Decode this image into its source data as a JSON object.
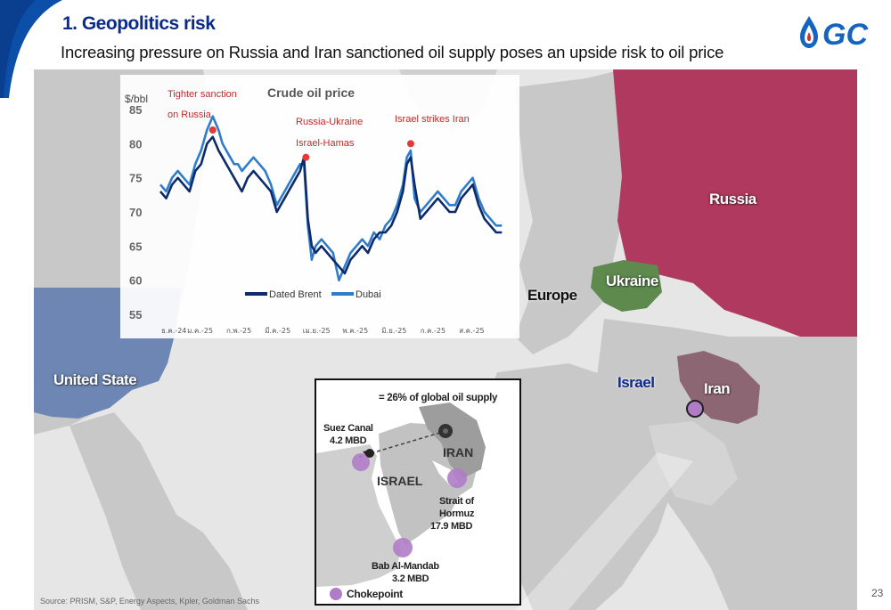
{
  "header": {
    "title": "1. Geopolitics risk",
    "subtitle": "Increasing pressure on Russia and Iran sanctioned oil supply poses an upside risk to oil price"
  },
  "logo": {
    "text": "GC",
    "icon": "drop-logo-icon",
    "color": "#1565c0"
  },
  "map": {
    "labels": {
      "russia": "Russia",
      "ukraine": "Ukraine",
      "europe": "Europe",
      "united_states": "United State",
      "israel": "Israel",
      "iran": "Iran"
    },
    "colors": {
      "russia": "#b03a5f",
      "ukraine": "#5e8a4e",
      "united_states": "#6d86b3",
      "iran": "#8c6673",
      "land": "#c8c8c8",
      "ocean": "#e6e6e6"
    }
  },
  "chart_data": {
    "type": "line",
    "title": "Crude oil price",
    "ylabel": "$/bbl",
    "xlabel": "",
    "ylim": [
      55,
      85
    ],
    "yticks": [
      55,
      60,
      65,
      70,
      75,
      80,
      85
    ],
    "x_tick_labels": [
      "ธ.ค.-24",
      "ม.ค.-25",
      "ก.พ.-25",
      "มี.ค.-25",
      "เม.ย.-25",
      "พ.ค.-25",
      "มิ.ย.-25",
      "ก.ค.-25",
      "ส.ค.-25"
    ],
    "x_range": [
      0,
      9
    ],
    "series": [
      {
        "name": "Dated Brent",
        "color": "#0d2a6b",
        "x": [
          0,
          0.15,
          0.3,
          0.45,
          0.6,
          0.75,
          0.9,
          1.05,
          1.2,
          1.35,
          1.5,
          1.6,
          1.7,
          1.8,
          1.9,
          2.0,
          2.1,
          2.25,
          2.4,
          2.55,
          2.7,
          2.85,
          3.0,
          3.1,
          3.2,
          3.3,
          3.4,
          3.5,
          3.6,
          3.7,
          3.8,
          3.9,
          4.0,
          4.15,
          4.3,
          4.45,
          4.6,
          4.75,
          4.9,
          5.05,
          5.2,
          5.35,
          5.5,
          5.65,
          5.8,
          5.95,
          6.1,
          6.25,
          6.35,
          6.45,
          6.55,
          6.7,
          6.85,
          7.0,
          7.15,
          7.3,
          7.45,
          7.6,
          7.75,
          7.9,
          8.05,
          8.2,
          8.35,
          8.5,
          8.65,
          8.8
        ],
        "values": [
          73,
          72,
          74,
          75,
          74,
          73,
          76,
          77,
          80,
          81,
          79,
          78,
          77,
          76,
          75,
          74,
          73,
          75,
          76,
          75,
          74,
          73,
          70,
          71,
          72,
          73,
          74,
          75,
          76,
          78,
          69,
          65,
          64,
          65,
          64,
          63,
          62,
          61,
          63,
          64,
          65,
          64,
          66,
          67,
          67,
          68,
          70,
          73,
          77,
          78,
          74,
          69,
          70,
          71,
          72,
          71,
          70,
          70,
          72,
          73,
          74,
          71,
          69,
          68,
          67,
          67
        ]
      },
      {
        "name": "Dubai",
        "color": "#2f7ccb",
        "x": [
          0,
          0.15,
          0.3,
          0.45,
          0.6,
          0.75,
          0.9,
          1.05,
          1.2,
          1.35,
          1.5,
          1.6,
          1.7,
          1.8,
          1.9,
          2.0,
          2.1,
          2.25,
          2.4,
          2.55,
          2.7,
          2.85,
          3.0,
          3.1,
          3.2,
          3.3,
          3.4,
          3.5,
          3.6,
          3.7,
          3.8,
          3.9,
          4.0,
          4.15,
          4.3,
          4.45,
          4.6,
          4.75,
          4.9,
          5.05,
          5.2,
          5.35,
          5.5,
          5.65,
          5.8,
          5.95,
          6.1,
          6.25,
          6.35,
          6.45,
          6.55,
          6.7,
          6.85,
          7.0,
          7.15,
          7.3,
          7.45,
          7.6,
          7.75,
          7.9,
          8.05,
          8.2,
          8.35,
          8.5,
          8.65,
          8.8
        ],
        "values": [
          74,
          73,
          75,
          76,
          75,
          74,
          77,
          79,
          82,
          84,
          82,
          80,
          79,
          78,
          77,
          77,
          76,
          77,
          78,
          77,
          76,
          74,
          71,
          72,
          73,
          74,
          75,
          76,
          77,
          77,
          68,
          63,
          65,
          66,
          65,
          64,
          60,
          62,
          64,
          65,
          66,
          65,
          67,
          66,
          68,
          69,
          71,
          74,
          78,
          79,
          72,
          70,
          71,
          72,
          73,
          72,
          71,
          71,
          73,
          74,
          75,
          72,
          70,
          69,
          68,
          68
        ]
      }
    ],
    "annotations": [
      {
        "text": "Tighter sanction",
        "x": 1.35,
        "y": 82
      },
      {
        "text": "on Russia",
        "x": 1.35,
        "y": 82
      },
      {
        "text": "Russia-Ukraine",
        "x": 3.8,
        "y": 78
      },
      {
        "text": "Israel-Hamas",
        "x": 3.8,
        "y": 78
      },
      {
        "text": "Israel strikes Iran",
        "x": 6.45,
        "y": 80
      }
    ],
    "event_markers": [
      {
        "x": 1.35,
        "y": 82
      },
      {
        "x": 3.75,
        "y": 78
      },
      {
        "x": 6.45,
        "y": 80
      }
    ],
    "legend": "bottom-center",
    "grid": false
  },
  "inset": {
    "headline": "= 26% of global oil supply",
    "labels": {
      "suez_line1": "Suez Canal",
      "suez_line2": "4.2 MBD",
      "iran": "IRAN",
      "israel": "ISRAEL",
      "hormuz_line1": "Strait of",
      "hormuz_line2": "Hormuz",
      "hormuz_line3": "17.9 MBD",
      "bab_line1": "Bab Al-Mandab",
      "bab_line2": "3.2 MBD",
      "legend": "Chokepoint"
    },
    "chokepoint_color": "#b07cc6"
  },
  "footer": {
    "source": "Source: PRISM, S&P, Energy Aspects, Kpler, Goldman Sachs",
    "page_number": "23"
  }
}
